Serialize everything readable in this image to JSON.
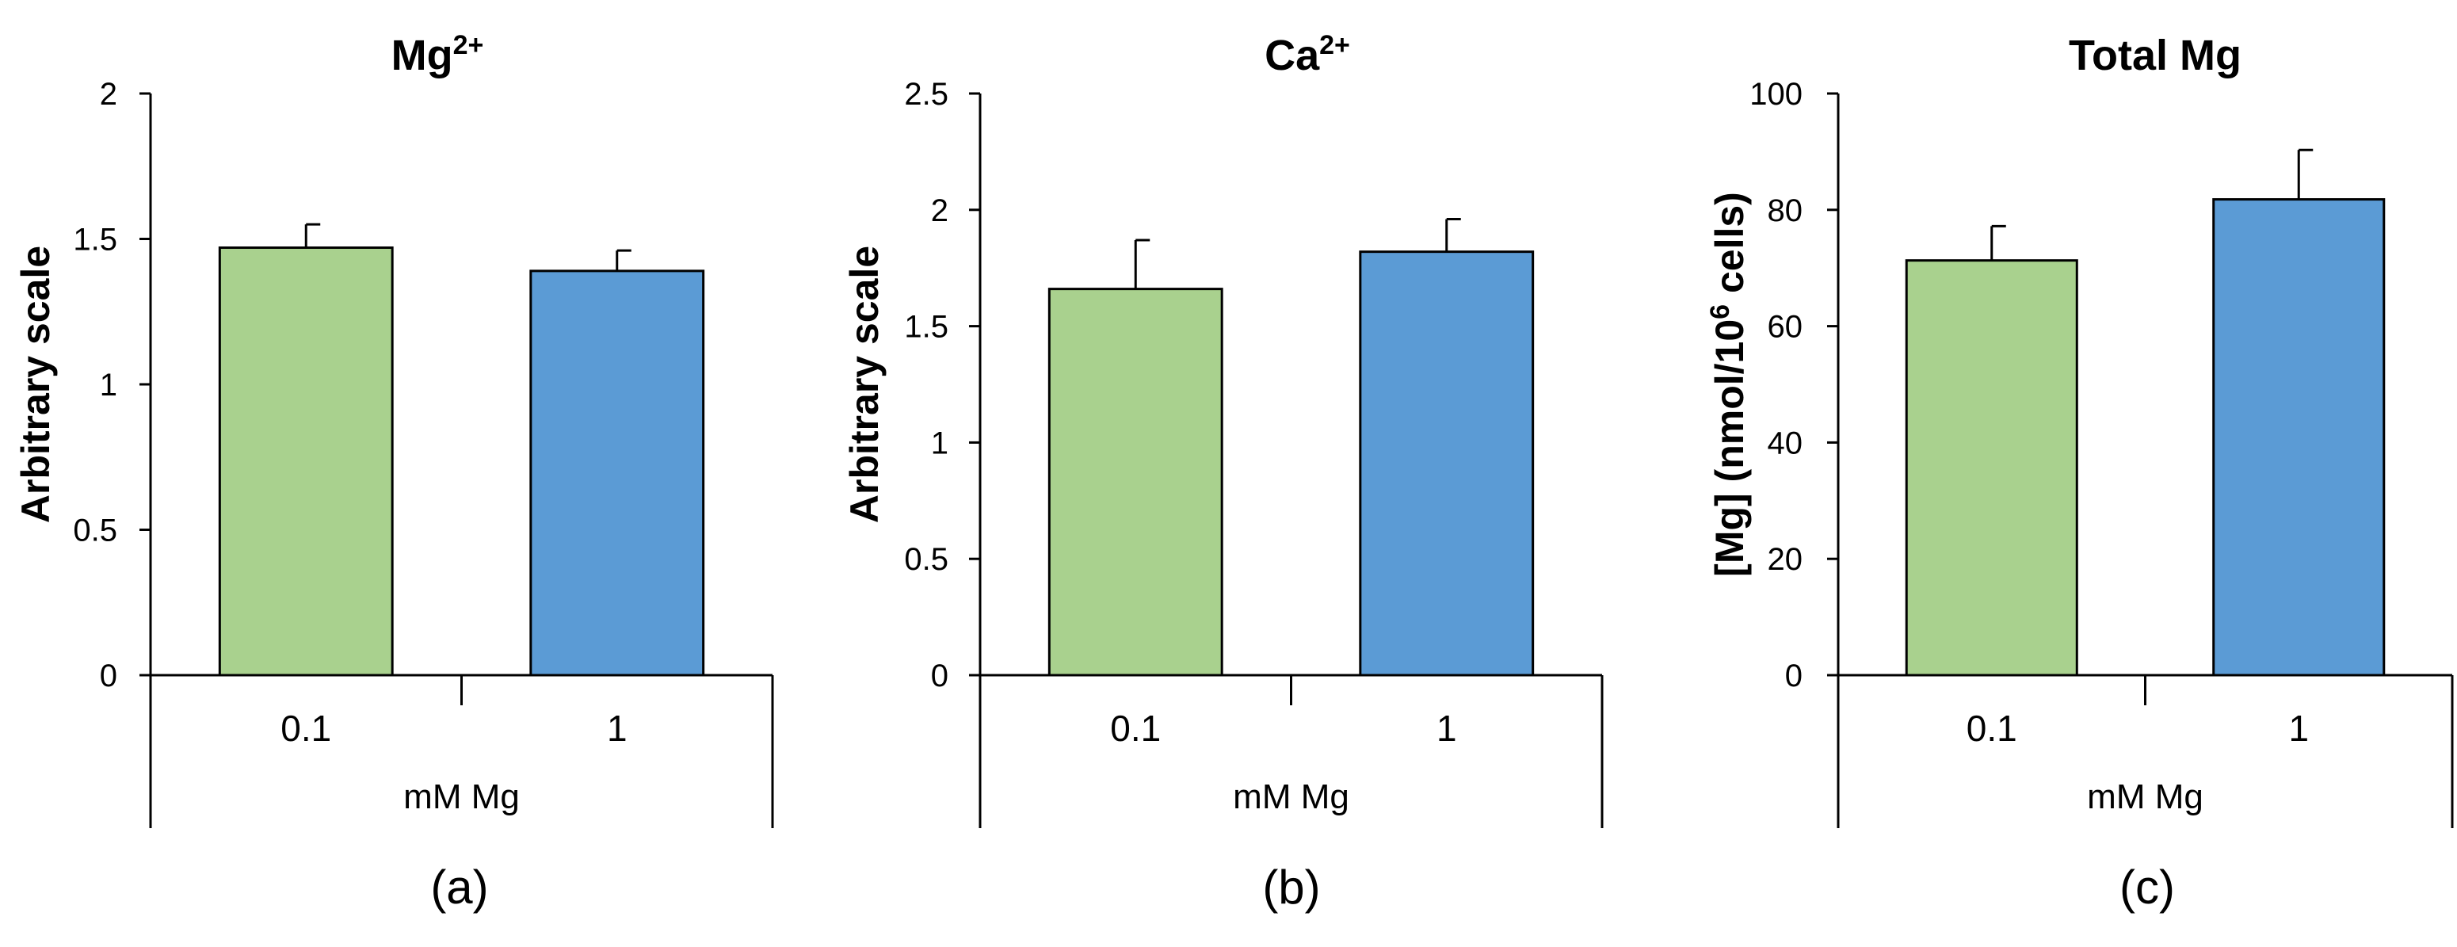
{
  "chart_data": [
    {
      "type": "bar",
      "title": "Mg",
      "title_superscript": "2+",
      "ylabel": "Arbitrary scale",
      "ylabel_superscript": "",
      "ylabel_suffix": "",
      "xlabel": "mM Mg",
      "panel_label": "(a)",
      "categories": [
        "0.1",
        "1"
      ],
      "values": [
        1.47,
        1.39
      ],
      "errors": [
        0.08,
        0.07
      ],
      "colors": [
        "#a9d18e",
        "#5b9bd5"
      ],
      "ylim": [
        0,
        2
      ],
      "yticks": [
        0,
        0.5,
        1,
        1.5,
        2
      ],
      "ytick_labels": [
        "0",
        "0.5",
        "1",
        "1.5",
        "2"
      ],
      "grid": false
    },
    {
      "type": "bar",
      "title": "Ca",
      "title_superscript": "2+",
      "ylabel": "Arbitrary scale",
      "ylabel_superscript": "",
      "ylabel_suffix": "",
      "xlabel": "mM Mg",
      "panel_label": "(b)",
      "categories": [
        "0.1",
        "1"
      ],
      "values": [
        1.66,
        1.82
      ],
      "errors": [
        0.21,
        0.14
      ],
      "colors": [
        "#a9d18e",
        "#5b9bd5"
      ],
      "ylim": [
        0,
        2.5
      ],
      "yticks": [
        0,
        0.5,
        1,
        1.5,
        2,
        2.5
      ],
      "ytick_labels": [
        "0",
        "0.5",
        "1",
        "1.5",
        "2",
        "2.5"
      ],
      "grid": false
    },
    {
      "type": "bar",
      "title": "Total Mg",
      "title_superscript": "",
      "ylabel": "[Mg] (nmol/10",
      "ylabel_superscript": "6",
      "ylabel_suffix": " cells)",
      "xlabel": "mM Mg",
      "panel_label": "(c)",
      "categories": [
        "0.1",
        "1"
      ],
      "values": [
        71.3,
        81.8
      ],
      "errors": [
        5.9,
        8.5
      ],
      "colors": [
        "#a9d18e",
        "#5b9bd5"
      ],
      "ylim": [
        0,
        100
      ],
      "yticks": [
        0,
        20,
        40,
        60,
        80,
        100
      ],
      "ytick_labels": [
        "0",
        "20",
        "40",
        "60",
        "80",
        "100"
      ],
      "grid": false
    }
  ]
}
